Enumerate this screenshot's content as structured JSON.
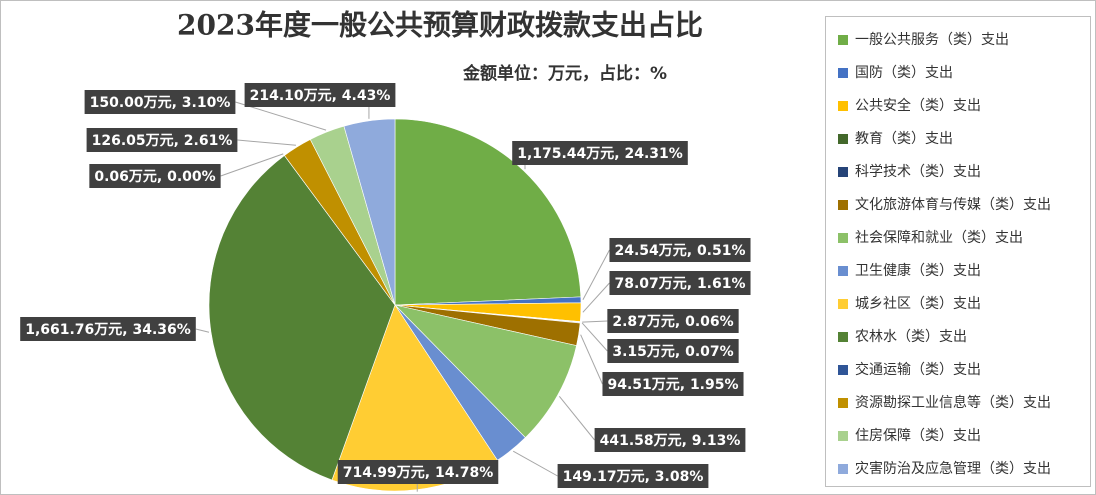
{
  "chart_data": {
    "type": "pie",
    "title": "2023年度一般公共预算财政拨款支出占比",
    "subtitle": "金额单位：万元，占比：%",
    "categories": [
      "一般公共服务（类）支出",
      "国防（类）支出",
      "公共安全（类）支出",
      "教育（类）支出",
      "科学技术（类）支出",
      "文化旅游体育与传媒（类）支出",
      "社会保障和就业（类）支出",
      "卫生健康（类）支出",
      "城乡社区（类）支出",
      "农林水（类）支出",
      "交通运输（类）支出",
      "资源勘探工业信息等（类）支出",
      "住房保障（类）支出",
      "灾害防治及应急管理（类）支出"
    ],
    "values": [
      1175.44,
      24.54,
      78.07,
      2.87,
      3.15,
      94.51,
      441.58,
      149.17,
      714.99,
      1661.76,
      0.06,
      126.05,
      150.0,
      214.1
    ],
    "value_labels": [
      "1,175.44万元, 24.31%",
      "24.54万元, 0.51%",
      "78.07万元, 1.61%",
      "2.87万元, 0.06%",
      "3.15万元, 0.07%",
      "94.51万元, 1.95%",
      "441.58万元, 9.13%",
      "149.17万元, 3.08%",
      "714.99万元, 14.78%",
      "1,661.76万元, 34.36%",
      "0.06万元, 0.00%",
      "126.05万元, 2.61%",
      "150.00万元, 3.10%",
      "214.10万元, 4.43%"
    ],
    "colors": [
      "#70ad47",
      "#4472c4",
      "#ffc000",
      "#43682b",
      "#264478",
      "#9e7000",
      "#8cc168",
      "#698ed0",
      "#ffcd33",
      "#548235",
      "#2f5597",
      "#c09000",
      "#a9d18e",
      "#8faadc"
    ],
    "legend": "right"
  }
}
